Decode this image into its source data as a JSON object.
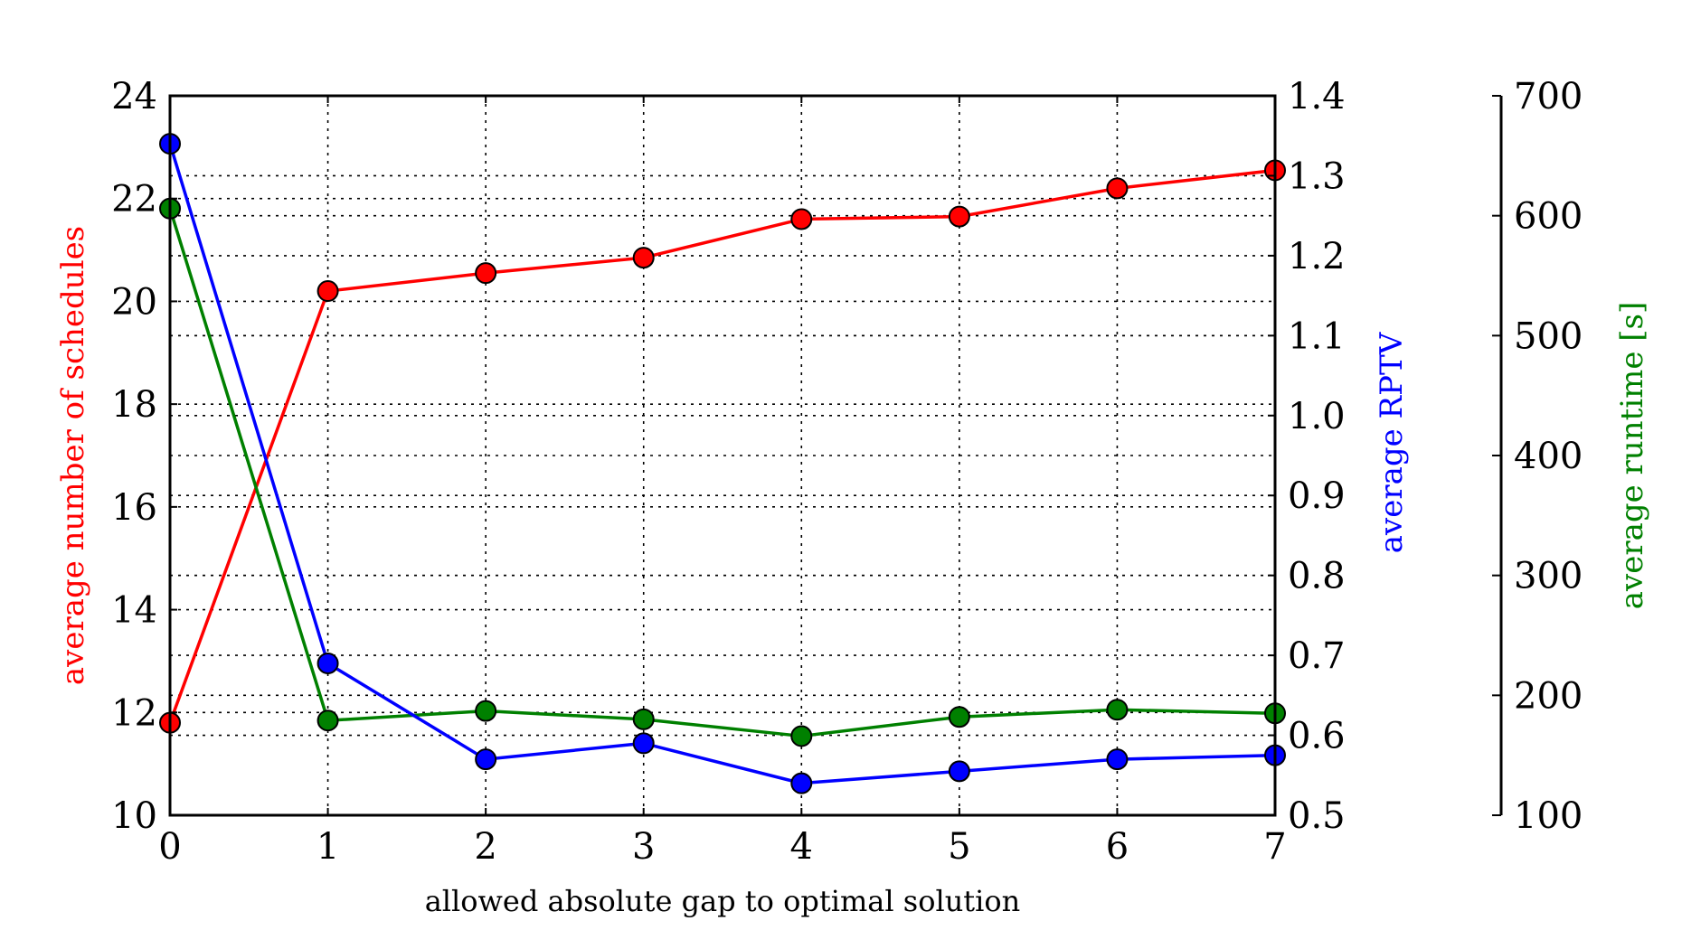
{
  "chart_data": {
    "type": "line",
    "xlabel": "allowed absolute gap to optimal solution",
    "x": [
      0,
      1,
      2,
      3,
      4,
      5,
      6,
      7
    ],
    "xlim": [
      0,
      7
    ],
    "xticks": [
      "0",
      "1",
      "2",
      "3",
      "4",
      "5",
      "6",
      "7"
    ],
    "axes": {
      "left": {
        "label": "average number of schedules",
        "color": "#ff0000",
        "lim": [
          10,
          24
        ],
        "ticks": [
          "10",
          "12",
          "14",
          "16",
          "18",
          "20",
          "22",
          "24"
        ],
        "tick_values": [
          10,
          12,
          14,
          16,
          18,
          20,
          22,
          24
        ]
      },
      "right": {
        "label": "average RPTV",
        "color": "#0000ff",
        "lim": [
          0.5,
          1.4
        ],
        "ticks": [
          "0.5",
          "0.6",
          "0.7",
          "0.8",
          "0.9",
          "1.0",
          "1.1",
          "1.2",
          "1.3",
          "1.4"
        ],
        "tick_values": [
          0.5,
          0.6,
          0.7,
          0.8,
          0.9,
          1.0,
          1.1,
          1.2,
          1.3,
          1.4
        ]
      },
      "far_right": {
        "label": "average runtime [s]",
        "color": "#008000",
        "lim": [
          100,
          700
        ],
        "ticks": [
          "100",
          "200",
          "300",
          "400",
          "500",
          "600",
          "700"
        ],
        "tick_values": [
          100,
          200,
          300,
          400,
          500,
          600,
          700
        ]
      }
    },
    "series": [
      {
        "axis": "left",
        "color": "#ff0000",
        "values": [
          11.8,
          20.2,
          20.55,
          20.85,
          21.6,
          21.65,
          22.2,
          22.55
        ]
      },
      {
        "axis": "far_right",
        "color": "#008000",
        "values": [
          606,
          179,
          187,
          180,
          166,
          182,
          188,
          185
        ]
      },
      {
        "axis": "right",
        "color": "#0000ff",
        "values": [
          1.34,
          0.69,
          0.57,
          0.59,
          0.54,
          0.555,
          0.57,
          0.575
        ]
      }
    ],
    "grid": true
  }
}
